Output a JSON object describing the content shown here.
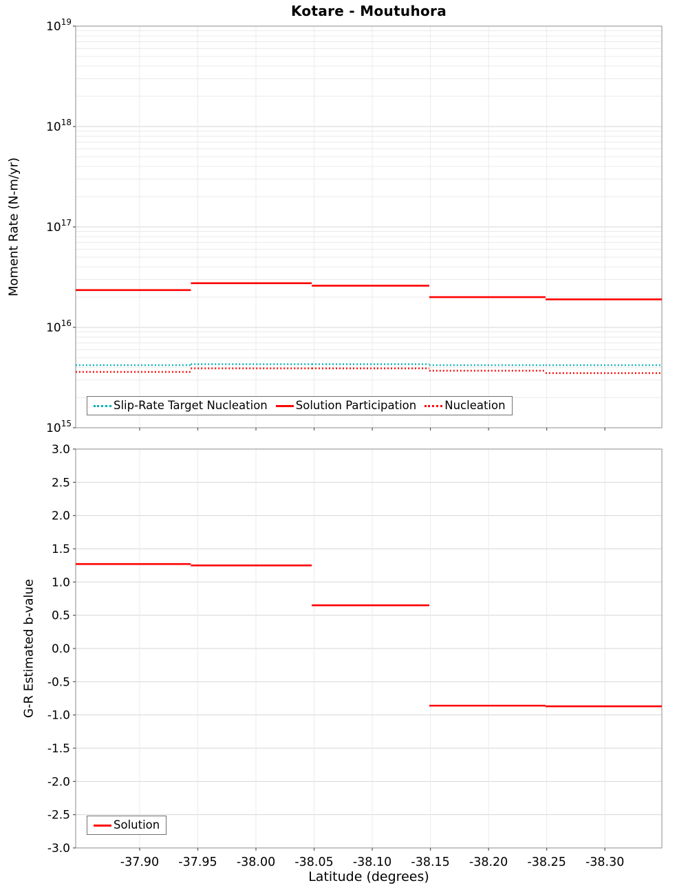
{
  "title": "Kotare - Moutuhora",
  "colors": {
    "solution_red": "#ff0000",
    "slip_rate_teal": "#00b0b8",
    "grid_major": "#d6d6d6",
    "grid_minor": "#eaeaea",
    "axis_border": "#9e9e9e",
    "tick_mark": "#555555",
    "text": "#000000"
  },
  "top_chart": {
    "ylabel": "Moment Rate (N-m/yr)",
    "y_tick_exponents": [
      19,
      18,
      17,
      16,
      15
    ],
    "legend": [
      {
        "label": "Slip-Rate Target Nucleation",
        "color": "#00b0b8",
        "dash": "dotted"
      },
      {
        "label": "Solution Participation",
        "color": "#ff0000",
        "dash": "solid"
      },
      {
        "label": "Nucleation",
        "color": "#ff0000",
        "dash": "dotted"
      }
    ]
  },
  "bottom_chart": {
    "ylabel": "G-R Estimated b-value",
    "xlabel": "Latitude (degrees)",
    "y_ticks": [
      3.0,
      2.5,
      2.0,
      1.5,
      1.0,
      0.5,
      0.0,
      -0.5,
      -1.0,
      -1.5,
      -2.0,
      -2.5,
      -3.0
    ],
    "x_ticks": [
      -37.9,
      -37.95,
      -38.0,
      -38.05,
      -38.1,
      -38.15,
      -38.2,
      -38.25,
      -38.3
    ],
    "legend": [
      {
        "label": "Solution",
        "color": "#ff0000",
        "dash": "solid"
      }
    ]
  },
  "chart_data": [
    {
      "type": "line",
      "title": "Kotare - Moutuhora",
      "xlabel": "Latitude (degrees)",
      "ylabel": "Moment Rate (N-m/yr)",
      "yscale": "log",
      "xlim": [
        -37.845,
        -38.349
      ],
      "ylim": [
        1000000000000000.0,
        1e+19
      ],
      "grid": true,
      "legend_position": "bottom-left-inside",
      "step_edges": [
        -37.845,
        -37.944,
        -38.048,
        -38.149,
        -38.249,
        -38.349
      ],
      "series": [
        {
          "name": "Slip-Rate Target Nucleation",
          "style": "dotted",
          "color": "#00b0b8",
          "values": [
            4200000000000000.0,
            4300000000000000.0,
            4300000000000000.0,
            4200000000000000.0,
            4200000000000000.0
          ]
        },
        {
          "name": "Solution Participation",
          "style": "solid",
          "color": "#ff0000",
          "values": [
            2.35e+16,
            2.75e+16,
            2.6e+16,
            2e+16,
            1.9e+16
          ]
        },
        {
          "name": "Nucleation",
          "style": "dotted",
          "color": "#ff0000",
          "values": [
            3600000000000000.0,
            3900000000000000.0,
            3900000000000000.0,
            3700000000000000.0,
            3500000000000000.0
          ]
        }
      ]
    },
    {
      "type": "line",
      "title": "",
      "xlabel": "Latitude (degrees)",
      "ylabel": "G-R Estimated b-value",
      "yscale": "linear",
      "xlim": [
        -37.845,
        -38.349
      ],
      "ylim": [
        -3.0,
        3.0
      ],
      "grid": true,
      "legend_position": "bottom-left-inside",
      "step_edges": [
        -37.845,
        -37.944,
        -38.048,
        -38.149,
        -38.249,
        -38.349
      ],
      "series": [
        {
          "name": "Solution",
          "style": "solid",
          "color": "#ff0000",
          "values": [
            1.27,
            1.25,
            0.65,
            -0.86,
            -0.87
          ]
        }
      ]
    }
  ]
}
